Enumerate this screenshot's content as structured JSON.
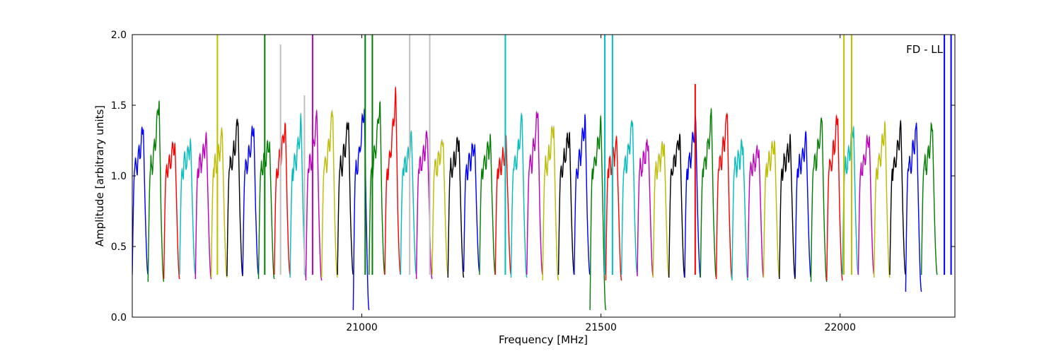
{
  "chart_data": {
    "type": "line",
    "title": "",
    "annotation": "FD - LL",
    "xlabel": "Frequency [MHz]",
    "ylabel": "Amplitude [arbitrary units]",
    "xlim": [
      20520,
      22240
    ],
    "ylim": [
      0.0,
      2.0
    ],
    "xticks": [
      21000,
      21500,
      22000
    ],
    "xtick_labels": [
      "21000",
      "21500",
      "22000"
    ],
    "yticks": [
      0.0,
      0.5,
      1.0,
      1.5,
      2.0
    ],
    "ytick_labels": [
      "0.0",
      "0.5",
      "1.0",
      "1.5",
      "2.0"
    ],
    "grid": false,
    "legend": "none",
    "color_cycle": [
      "#0000ff",
      "#008000",
      "#ff0000",
      "#00bfbf",
      "#bf00bf",
      "#bfbf00",
      "#000000"
    ],
    "background_trace_color": "#c0c0c0",
    "segment_width_mhz": 33,
    "segment_start_mhz": 20520,
    "segment_peaks": [
      1.35,
      1.56,
      1.25,
      1.24,
      1.27,
      1.3,
      1.4,
      1.36,
      1.26,
      1.39,
      1.37,
      1.42,
      1.45,
      1.4,
      1.5,
      1.55,
      1.6,
      1.26,
      1.28,
      1.25,
      1.27,
      1.24,
      1.26,
      1.22,
      1.4,
      1.47,
      1.37,
      1.33,
      1.42,
      1.37,
      1.23,
      1.4,
      1.23,
      1.24,
      1.3,
      1.4,
      1.43,
      1.45,
      1.22,
      1.2,
      1.25,
      1.24,
      1.27,
      1.41,
      1.43,
      1.37,
      1.3,
      1.37,
      1.36,
      1.34,
      1.35
    ],
    "segment_dips": [
      0.3,
      0.25,
      0.27,
      0.3,
      0.27,
      0.28,
      0.29,
      0.3,
      0.27,
      0.3,
      0.28,
      0.26,
      0.28,
      0.3,
      0.05,
      0.3,
      0.3,
      0.3,
      0.27,
      0.3,
      0.28,
      0.32,
      0.3,
      0.3,
      0.28,
      0.3,
      0.26,
      0.3,
      0.3,
      0.05,
      0.26,
      0.3,
      0.29,
      0.28,
      0.28,
      0.28,
      0.28,
      0.27,
      0.26,
      0.28,
      0.28,
      0.27,
      0.28,
      0.25,
      0.26,
      0.3,
      0.3,
      0.28,
      0.3,
      0.18,
      0.3
    ],
    "spikes": [
      {
        "x": 20698,
        "y_top": 2.0,
        "color": "#bfbf00"
      },
      {
        "x": 20797,
        "y_top": 2.0,
        "color": "#008000"
      },
      {
        "x": 20830,
        "y_top": 1.93,
        "color": "#c0c0c0"
      },
      {
        "x": 20880,
        "y_top": 1.57,
        "color": "#c0c0c0"
      },
      {
        "x": 20897,
        "y_top": 2.0,
        "color": "#bf00bf"
      },
      {
        "x": 21007,
        "y_top": 2.0,
        "color": "#008000"
      },
      {
        "x": 21022,
        "y_top": 2.0,
        "color": "#008000"
      },
      {
        "x": 21100,
        "y_top": 2.0,
        "color": "#c0c0c0"
      },
      {
        "x": 21142,
        "y_top": 2.0,
        "color": "#c0c0c0"
      },
      {
        "x": 21300,
        "y_top": 2.0,
        "color": "#00bfbf"
      },
      {
        "x": 21508,
        "y_top": 2.0,
        "color": "#00bfbf"
      },
      {
        "x": 21524,
        "y_top": 2.0,
        "color": "#00bfbf"
      },
      {
        "x": 21697,
        "y_top": 1.65,
        "color": "#ff0000"
      },
      {
        "x": 22008,
        "y_top": 2.0,
        "color": "#bfbf00"
      },
      {
        "x": 22024,
        "y_top": 2.0,
        "color": "#bfbf00"
      },
      {
        "x": 22218,
        "y_top": 2.0,
        "color": "#0000ff"
      },
      {
        "x": 22232,
        "y_top": 2.0,
        "color": "#0000ff"
      }
    ]
  }
}
